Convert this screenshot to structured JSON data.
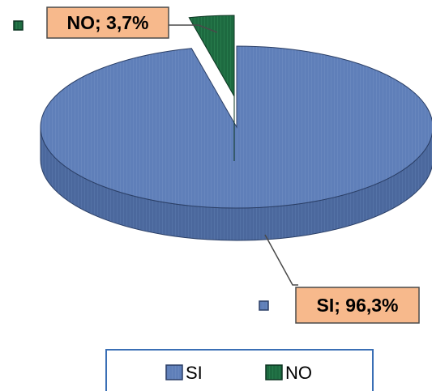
{
  "chart_data": {
    "type": "pie",
    "categories": [
      "SI",
      "NO"
    ],
    "values": [
      96.3,
      3.7
    ],
    "data_labels": [
      "SI; 96,3%",
      "NO; 3,7%"
    ],
    "legend": {
      "placement": "bottom",
      "entries": [
        "SI",
        "NO"
      ]
    },
    "colors": {
      "SI_top": "#5f7fb9",
      "SI_side": "#4b689d",
      "NO_top": "#1d6a40",
      "NO_side": "#124d2d",
      "label_fill": "#f7b98c",
      "label_border": "#4a4a4a",
      "legend_border": "#3a6fb5"
    }
  }
}
